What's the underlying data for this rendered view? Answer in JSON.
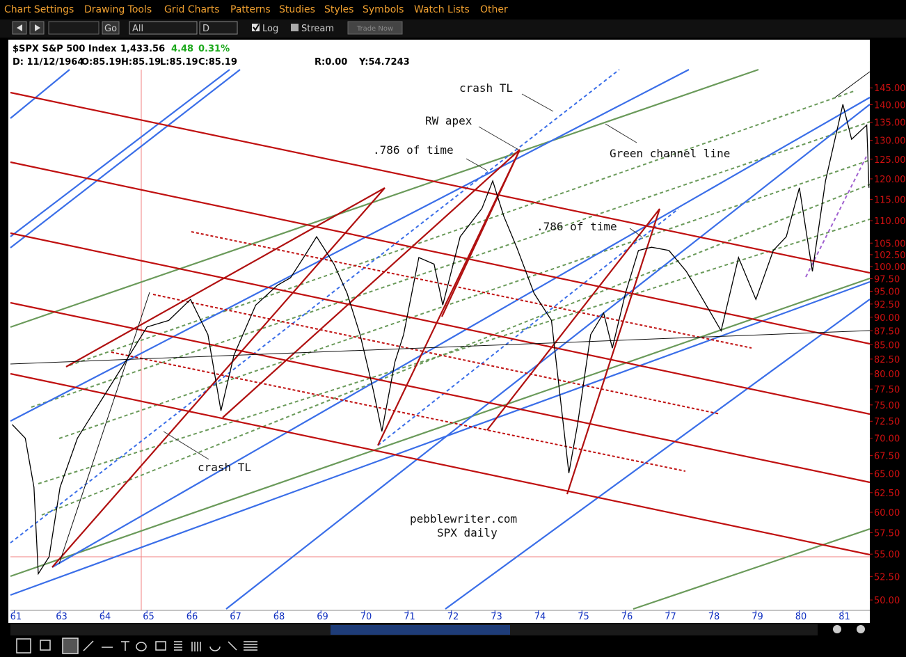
{
  "menu": [
    "Chart Settings",
    "Drawing Tools",
    "Grid Charts",
    "Patterns",
    "Studies",
    "Styles",
    "Symbols",
    "Watch Lists",
    "Other"
  ],
  "toolbar": {
    "go": "Go",
    "range": "All",
    "period": "D",
    "log": "Log",
    "stream": "Stream",
    "trade": "Trade Now"
  },
  "header": {
    "symbol": "$SPX S&P 500 Index",
    "last": "1,433.56",
    "change": "4.48",
    "change_pct": "0.31%",
    "date": "D: 11/12/1964",
    "open": "O:85.19",
    "high": "H:85.19",
    "low": "L:85.19",
    "close": "C:85.19",
    "r": "R:0.00",
    "y": "Y:54.7243"
  },
  "annotations": [
    "crash TL",
    "RW apex",
    ".786 of time",
    "Green channel line",
    ".786 of time",
    "crash TL",
    "pebblewriter.com",
    "SPX daily"
  ],
  "chart_data": {
    "type": "line",
    "color": "#000000",
    "log_scale": true,
    "x": [
      1961.9,
      1962.2,
      1962.4,
      1962.5,
      1962.75,
      1963,
      1963.4,
      1964,
      1964.5,
      1965,
      1965.5,
      1966,
      1966.4,
      1966.7,
      1967,
      1967.5,
      1968,
      1968.3,
      1968.6,
      1968.9,
      1969.3,
      1969.6,
      1969.9,
      1970.2,
      1970.4,
      1970.7,
      1970.9,
      1971.25,
      1971.6,
      1971.8,
      1972.2,
      1972.7,
      1972.95,
      1973.2,
      1973.5,
      1973.9,
      1974.3,
      1974.5,
      1974.7,
      1974.9,
      1975.2,
      1975.5,
      1975.7,
      1976,
      1976.3,
      1976.6,
      1977,
      1977.4,
      1977.7,
      1978.2,
      1978.6,
      1979,
      1979.4,
      1979.7,
      1980,
      1980.3,
      1980.6,
      1981,
      1981.2,
      1981.55,
      1981.6
    ],
    "values": [
      72.0,
      70.0,
      63.2,
      52.8,
      54.7,
      63.2,
      70.0,
      76.3,
      82.0,
      88.2,
      89.4,
      93.4,
      86.8,
      74.1,
      83.2,
      92.3,
      96.2,
      97.7,
      101.9,
      106.4,
      100.5,
      94.6,
      86.8,
      77.4,
      71.0,
      82.0,
      86.8,
      101.9,
      100.5,
      92.3,
      106.4,
      112.8,
      119.5,
      111.1,
      104.1,
      94.6,
      89.4,
      76.3,
      65.1,
      72.0,
      86.8,
      90.8,
      84.4,
      94.6,
      103.4,
      104.1,
      103.4,
      99.0,
      94.6,
      87.5,
      101.9,
      93.4,
      103.4,
      106.4,
      117.8,
      99.0,
      119.5,
      140.1,
      130.3,
      134.2,
      117.8
    ],
    "xlim": [
      1961.86,
      1981.62
    ],
    "xticks": [
      {
        "value": 1961.95,
        "label": "61"
      },
      {
        "value": 1963,
        "label": "63"
      },
      {
        "value": 1964,
        "label": "64"
      },
      {
        "value": 1965,
        "label": "65"
      },
      {
        "value": 1966,
        "label": "66"
      },
      {
        "value": 1967,
        "label": "67"
      },
      {
        "value": 1968,
        "label": "68"
      },
      {
        "value": 1969,
        "label": "69"
      },
      {
        "value": 1970,
        "label": "70"
      },
      {
        "value": 1971,
        "label": "71"
      },
      {
        "value": 1972,
        "label": "72"
      },
      {
        "value": 1973,
        "label": "73"
      },
      {
        "value": 1974,
        "label": "74"
      },
      {
        "value": 1975,
        "label": "75"
      },
      {
        "value": 1976,
        "label": "76"
      },
      {
        "value": 1977,
        "label": "77"
      },
      {
        "value": 1978,
        "label": "78"
      },
      {
        "value": 1979,
        "label": "79"
      },
      {
        "value": 1980,
        "label": "80"
      },
      {
        "value": 1981,
        "label": "81"
      }
    ],
    "ylim": [
      48.93,
      150.6
    ],
    "yticks": [
      {
        "value": 145,
        "label": "145.00"
      },
      {
        "value": 140,
        "label": "140.00"
      },
      {
        "value": 135,
        "label": "135.00"
      },
      {
        "value": 130,
        "label": "130.00"
      },
      {
        "value": 125,
        "label": "125.00"
      },
      {
        "value": 120,
        "label": "120.00"
      },
      {
        "value": 115,
        "label": "115.00"
      },
      {
        "value": 110,
        "label": "110.00"
      },
      {
        "value": 105,
        "label": "105.00"
      },
      {
        "value": 102.5,
        "label": "102.50"
      },
      {
        "value": 100,
        "label": "100.00"
      },
      {
        "value": 97.5,
        "label": "97.50"
      },
      {
        "value": 95,
        "label": "95.00"
      },
      {
        "value": 92.5,
        "label": "92.50"
      },
      {
        "value": 90,
        "label": "90.00"
      },
      {
        "value": 87.5,
        "label": "87.50"
      },
      {
        "value": 85,
        "label": "85.00"
      },
      {
        "value": 82.5,
        "label": "82.50"
      },
      {
        "value": 80,
        "label": "80.00"
      },
      {
        "value": 77.5,
        "label": "77.50"
      },
      {
        "value": 75,
        "label": "75.00"
      },
      {
        "value": 72.5,
        "label": "72.50"
      },
      {
        "value": 70,
        "label": "70.00"
      },
      {
        "value": 67.5,
        "label": "67.50"
      },
      {
        "value": 65,
        "label": "65.00"
      },
      {
        "value": 62.5,
        "label": "62.50"
      },
      {
        "value": 60,
        "label": "60.00"
      },
      {
        "value": 57.5,
        "label": "57.50"
      },
      {
        "value": 55,
        "label": "55.00"
      },
      {
        "value": 52.5,
        "label": "52.50"
      },
      {
        "value": 50,
        "label": "50.00"
      }
    ]
  }
}
